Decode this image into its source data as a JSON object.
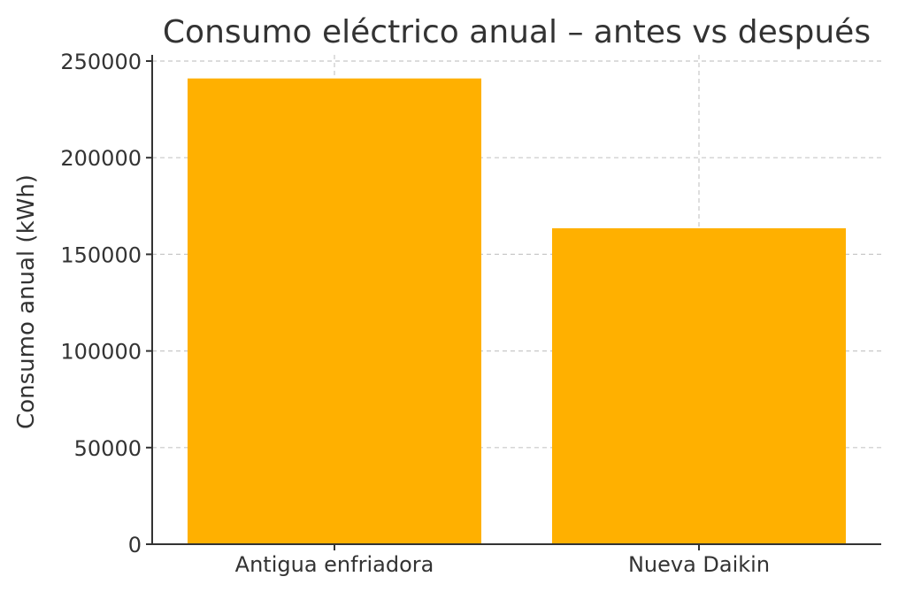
{
  "chart_data": {
    "type": "bar",
    "title": "Consumo eléctrico anual – antes vs después",
    "xlabel": "",
    "ylabel": "Consumo anual (kWh)",
    "categories": [
      "Antigua enfriadora",
      "Nueva Daikin"
    ],
    "values": [
      241000,
      163500
    ],
    "ylim": [
      0,
      250000
    ],
    "yticks": [
      0,
      50000,
      100000,
      150000,
      200000,
      250000
    ],
    "ytick_labels": [
      "0",
      "50000",
      "100000",
      "150000",
      "200000",
      "250000"
    ],
    "bar_color": "#FFB000",
    "grid": true,
    "legend": "none"
  }
}
